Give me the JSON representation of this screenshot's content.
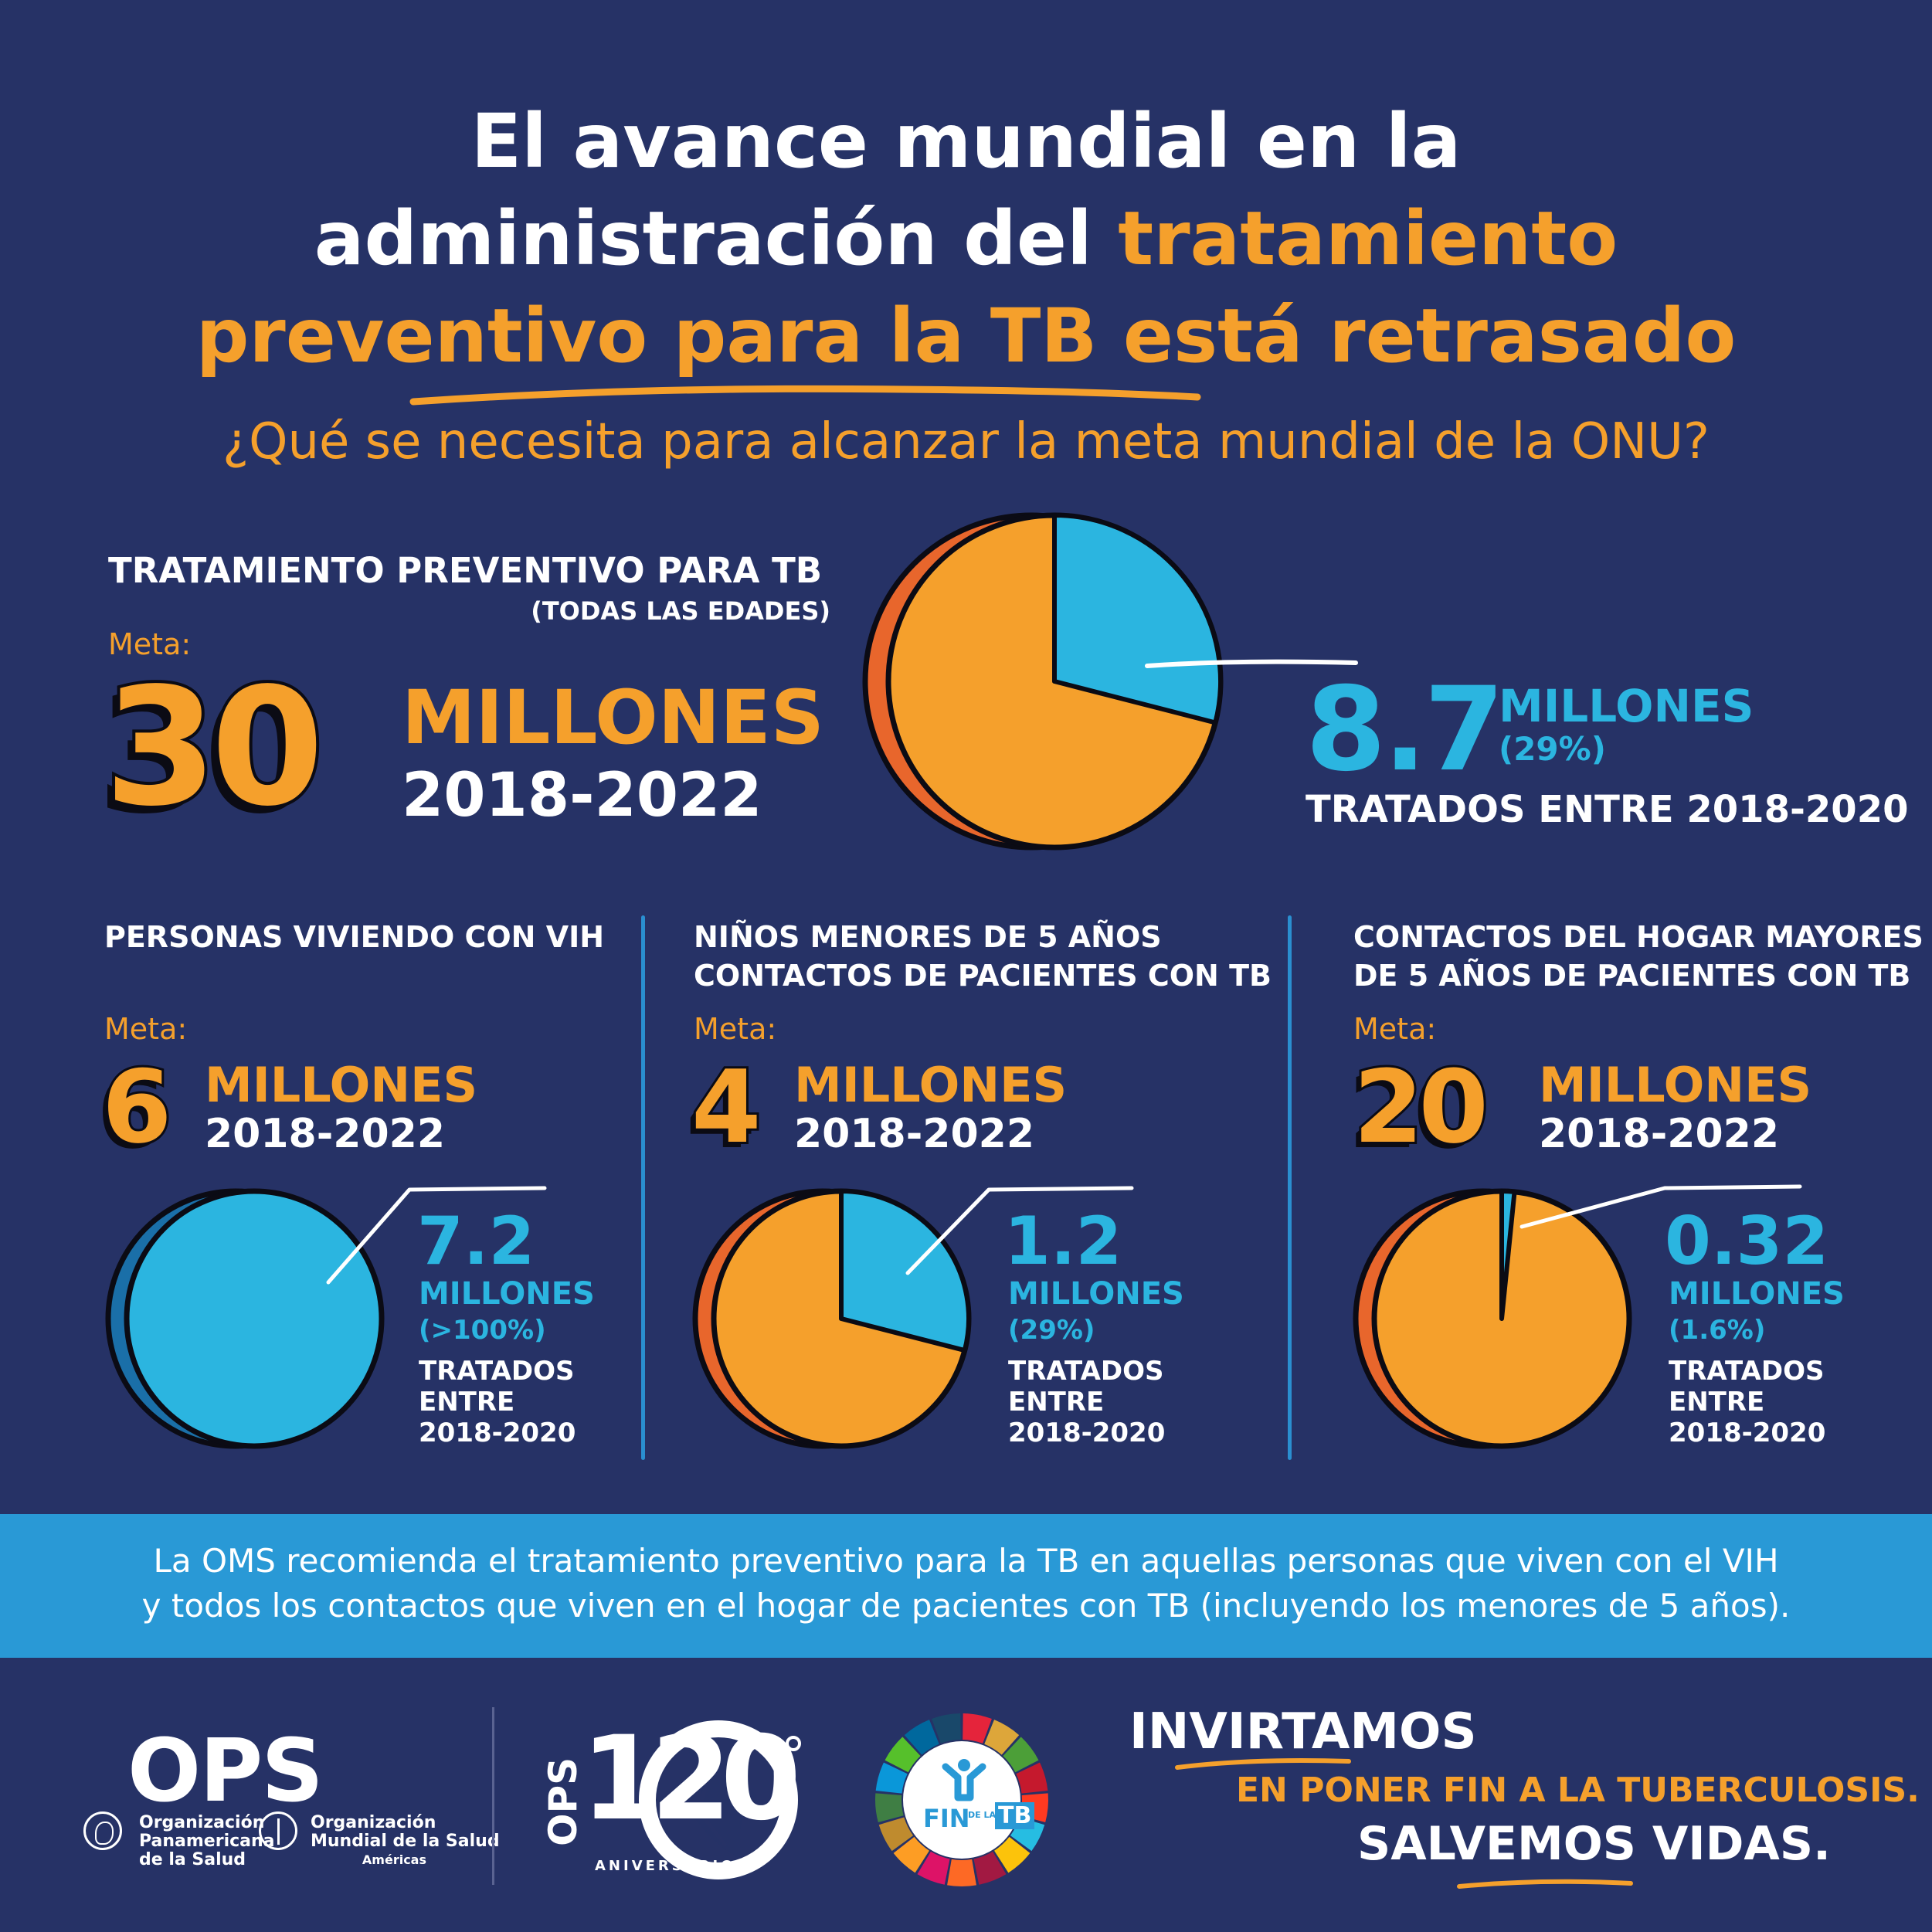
{
  "title": {
    "line1": "El avance mundial en la",
    "line2_white": "administración del ",
    "line2_orange": "tratamiento",
    "line3_orange": "preventivo para la TB está retrasado"
  },
  "subtitle": "¿Qué se necesita para alcanzar la meta mundial de la ONU?",
  "top": {
    "heading": "TRATAMIENTO PREVENTIVO PARA TB",
    "subheading": "(TODAS LAS EDADES)",
    "meta_label": "Meta:",
    "goal_number": "30",
    "goal_unit": "MILLONES",
    "goal_years": "2018-2022",
    "result_number": "8.7",
    "result_unit": "MILLONES",
    "result_pct": "(29%)",
    "result_text": "TRATADOS ENTRE 2018-2020"
  },
  "columns": [
    {
      "heading_line1": "PERSONAS VIVIENDO CON VIH",
      "heading_line2": "",
      "meta_label": "Meta:",
      "goal_number": "6",
      "goal_unit": "MILLONES",
      "goal_years": "2018-2022",
      "result_number": "7.2",
      "result_unit": "MILLONES",
      "result_pct": "(>100%)",
      "result_text_1": "TRATADOS",
      "result_text_2": "ENTRE",
      "result_text_3": "2018-2020"
    },
    {
      "heading_line1": "NIÑOS MENORES DE 5 AÑOS",
      "heading_line2": "CONTACTOS DE PACIENTES CON TB",
      "meta_label": "Meta:",
      "goal_number": "4",
      "goal_unit": "MILLONES",
      "goal_years": "2018-2022",
      "result_number": "1.2",
      "result_unit": "MILLONES",
      "result_pct": "(29%)",
      "result_text_1": "TRATADOS",
      "result_text_2": "ENTRE",
      "result_text_3": "2018-2020"
    },
    {
      "heading_line1": "CONTACTOS DEL HOGAR MAYORES",
      "heading_line2": "DE 5 AÑOS DE PACIENTES CON TB",
      "meta_label": "Meta:",
      "goal_number": "20",
      "goal_unit": "MILLONES",
      "goal_years": "2018-2022",
      "result_number": "0.32",
      "result_unit": "MILLONES",
      "result_pct": "(1.6%)",
      "result_text_1": "TRATADOS",
      "result_text_2": "ENTRE",
      "result_text_3": "2018-2020"
    }
  ],
  "banner": {
    "line1": "La OMS recomienda el tratamiento preventivo para la TB en aquellas personas que viven con el VIH",
    "line2": "y todos los contactos que viven en el hogar de pacientes con TB (incluyendo los menores de 5 años)."
  },
  "footer": {
    "ops_logo": "OPS",
    "org1_line1": "Organización",
    "org1_line2": "Panamericana",
    "org1_line3": "de la Salud",
    "org2_line1": "Organización",
    "org2_line2": "Mundial de la Salud",
    "org2_line3": "Américas",
    "anniv_prefix": "OPS",
    "anniv_number": "120",
    "anniv_label": "ANIVERSARIO",
    "fin_label": "FIN",
    "fin_small": "DE LA",
    "fin_tb": "TB",
    "cta1": "INVIRTAMOS",
    "cta2": "EN PONER FIN A LA TUBERCULOSIS.",
    "cta3": "SALVEMOS VIDAS."
  },
  "colors": {
    "background": "#263266",
    "orange": "#f5a02c",
    "dark_orange": "#e8662c",
    "blue": "#2bb5e0",
    "dark_blue": "#1a6fa8",
    "banner": "#2999d6"
  },
  "chart_data": [
    {
      "type": "pie",
      "title": "TRATAMIENTO PREVENTIVO PARA TB (TODAS LAS EDADES)",
      "categories": [
        "TRATADOS ENTRE 2018-2020"
      ],
      "values": [
        29
      ],
      "goal": 30,
      "treated": 8.7,
      "unit": "MILLONES"
    },
    {
      "type": "pie",
      "title": "PERSONAS VIVIENDO CON VIH",
      "categories": [
        "TRATADOS ENTRE 2018-2020"
      ],
      "values": [
        100
      ],
      "goal": 6,
      "treated": 7.2,
      "unit": "MILLONES"
    },
    {
      "type": "pie",
      "title": "NIÑOS MENORES DE 5 AÑOS CONTACTOS DE PACIENTES CON TB",
      "categories": [
        "TRATADOS ENTRE 2018-2020"
      ],
      "values": [
        29
      ],
      "goal": 4,
      "treated": 1.2,
      "unit": "MILLONES"
    },
    {
      "type": "pie",
      "title": "CONTACTOS DEL HOGAR MAYORES DE 5 AÑOS DE PACIENTES CON TB",
      "categories": [
        "TRATADOS ENTRE 2018-2020"
      ],
      "values": [
        1.6
      ],
      "goal": 20,
      "treated": 0.32,
      "unit": "MILLONES"
    }
  ]
}
